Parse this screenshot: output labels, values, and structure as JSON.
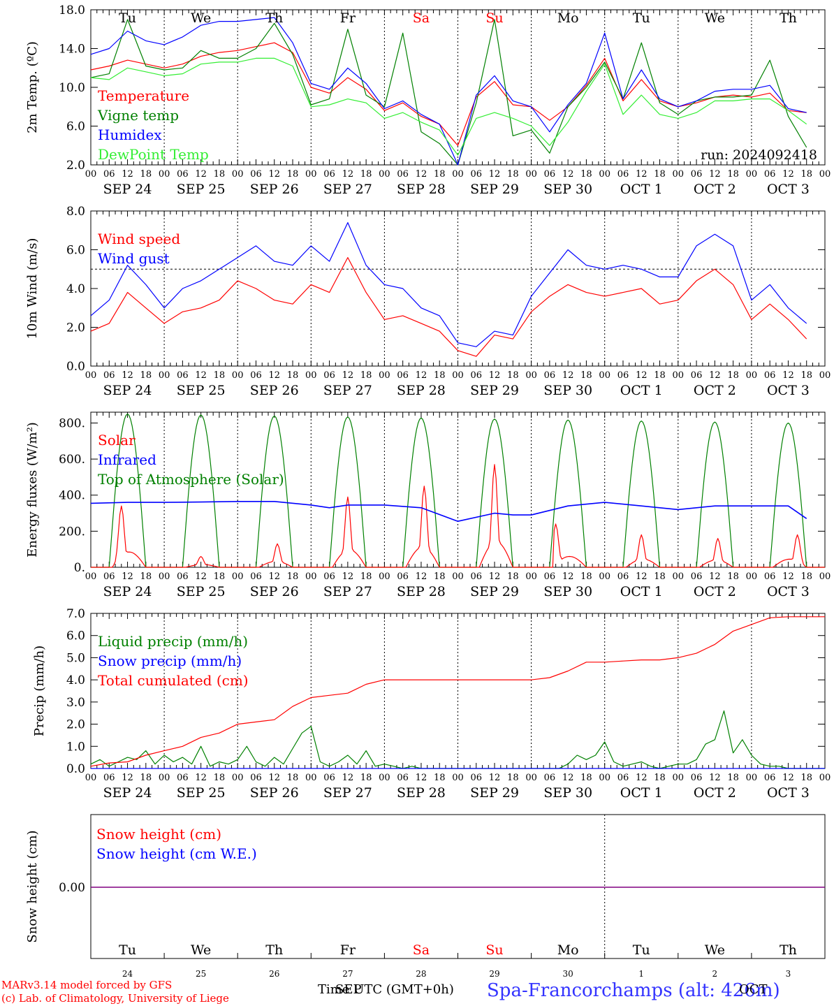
{
  "run_label": "run: 2024092418",
  "footer": {
    "credit_line1": "MARv3.14 model forced by GFS",
    "credit_line2": "(c) Lab. of Climatology, University of Liege",
    "axis_label": "Time UTC (GMT+0h)",
    "station": "Spa-Francorchamps (alt: 426m)",
    "month_marks": [
      "SEP",
      "OCT"
    ]
  },
  "colors": {
    "red": "#ff0000",
    "green": "#008000",
    "blue": "#0000ff",
    "lightgreen": "#33ee33",
    "purple": "#800080",
    "black": "#000000"
  },
  "time_axis": {
    "hour_labels": [
      "00",
      "06",
      "12",
      "18"
    ],
    "day_labels": [
      "SEP 24",
      "SEP 25",
      "SEP 26",
      "SEP 27",
      "SEP 28",
      "SEP 29",
      "SEP 30",
      "OCT  1",
      "OCT  2",
      "OCT  3"
    ],
    "weekdays": [
      "Tu",
      "We",
      "Th",
      "Fr",
      "Sa",
      "Su",
      "Mo",
      "Tu",
      "We",
      "Th"
    ],
    "weekend_days": [
      4,
      5
    ],
    "day_numbers": [
      "24",
      "25",
      "26",
      "27",
      "28",
      "29",
      "30",
      "1",
      "2",
      "3"
    ]
  },
  "chart_data": [
    {
      "type": "line",
      "name": "temperature",
      "ylabel": "2m Temp. (ºC)",
      "ylim": [
        2,
        18
      ],
      "yticks": [
        "2.0",
        "6.0",
        "10.0",
        "14.0",
        "18.0"
      ],
      "ytick_values": [
        2,
        6,
        10,
        14,
        18
      ],
      "x_unit": "hours since 2024-09-24 00 UTC",
      "grid": "vertical dotted at day boundaries",
      "legend_position": "left",
      "series": [
        {
          "name": "Temperature",
          "color": "#ff0000",
          "x": [
            0,
            6,
            12,
            18,
            24,
            30,
            36,
            42,
            48,
            54,
            60,
            66,
            72,
            78,
            84,
            90,
            96,
            102,
            108,
            114,
            120,
            126,
            132,
            138,
            144,
            150,
            156,
            162,
            168,
            174,
            180,
            186,
            192,
            198,
            204,
            210,
            216,
            222,
            228,
            234
          ],
          "y": [
            11.8,
            12.2,
            12.8,
            12.4,
            12.0,
            12.4,
            13.2,
            13.6,
            13.8,
            14.2,
            14.6,
            13.6,
            10.0,
            9.4,
            11.0,
            9.8,
            7.6,
            8.4,
            7.0,
            6.2,
            4.0,
            9.0,
            10.6,
            8.2,
            8.0,
            6.6,
            8.0,
            10.2,
            13.0,
            8.6,
            10.8,
            8.6,
            8.0,
            8.4,
            9.0,
            9.2,
            9.0,
            9.4,
            7.6,
            7.4
          ]
        },
        {
          "name": "Vigne temp",
          "color": "#008000",
          "x": [
            0,
            6,
            12,
            18,
            24,
            30,
            36,
            42,
            48,
            54,
            60,
            66,
            72,
            78,
            84,
            90,
            96,
            102,
            108,
            114,
            120,
            126,
            132,
            138,
            144,
            150,
            156,
            162,
            168,
            174,
            180,
            186,
            192,
            198,
            204,
            210,
            216,
            222,
            228,
            234
          ],
          "y": [
            11.0,
            11.4,
            17.0,
            12.2,
            11.8,
            12.0,
            13.8,
            13.0,
            13.0,
            14.0,
            16.6,
            13.4,
            8.2,
            8.8,
            16.0,
            9.2,
            8.0,
            15.6,
            5.4,
            4.2,
            2.0,
            8.4,
            17.0,
            5.0,
            5.6,
            3.2,
            8.0,
            10.0,
            12.6,
            8.8,
            14.6,
            8.4,
            7.2,
            8.6,
            9.0,
            9.0,
            9.2,
            12.8,
            7.0,
            3.8
          ]
        },
        {
          "name": "Humidex",
          "color": "#0000ff",
          "x": [
            0,
            6,
            12,
            18,
            24,
            30,
            36,
            42,
            48,
            54,
            60,
            66,
            72,
            78,
            84,
            90,
            96,
            102,
            108,
            114,
            120,
            126,
            132,
            138,
            144,
            150,
            156,
            162,
            168,
            174,
            180,
            186,
            192,
            198,
            204,
            210,
            216,
            222,
            228,
            234
          ],
          "y": [
            13.4,
            14.0,
            15.8,
            14.8,
            14.4,
            15.2,
            16.4,
            16.8,
            16.8,
            17.0,
            17.2,
            14.6,
            10.4,
            9.8,
            12.0,
            10.4,
            7.8,
            8.6,
            7.2,
            6.2,
            2.0,
            9.2,
            11.2,
            8.6,
            8.0,
            5.4,
            8.2,
            10.4,
            15.6,
            8.8,
            11.8,
            8.8,
            8.0,
            8.6,
            9.6,
            9.8,
            9.8,
            10.2,
            7.8,
            7.4
          ]
        },
        {
          "name": "DewPoint Temp",
          "color": "#33ee33",
          "x": [
            0,
            6,
            12,
            18,
            24,
            30,
            36,
            42,
            48,
            54,
            60,
            66,
            72,
            78,
            84,
            90,
            96,
            102,
            108,
            114,
            120,
            126,
            132,
            138,
            144,
            150,
            156,
            162,
            168,
            174,
            180,
            186,
            192,
            198,
            204,
            210,
            216,
            222,
            228,
            234
          ],
          "y": [
            11.0,
            10.8,
            12.0,
            11.6,
            11.2,
            11.4,
            12.4,
            12.6,
            12.6,
            13.0,
            13.0,
            12.2,
            8.0,
            8.2,
            8.8,
            8.4,
            6.8,
            7.4,
            6.4,
            5.6,
            3.0,
            6.8,
            7.4,
            6.8,
            6.0,
            4.0,
            6.4,
            9.6,
            12.4,
            7.2,
            9.2,
            7.2,
            6.8,
            7.4,
            8.6,
            8.6,
            8.8,
            8.8,
            7.6,
            6.2
          ]
        }
      ]
    },
    {
      "type": "line",
      "name": "wind",
      "ylabel": "10m Wind (m/s)",
      "ylim": [
        0,
        8
      ],
      "yticks": [
        "0.0",
        "2.0",
        "4.0",
        "6.0",
        "8.0"
      ],
      "ytick_values": [
        0,
        2,
        4,
        6,
        8
      ],
      "reference_line": 5.0,
      "x_unit": "hours since 2024-09-24 00 UTC",
      "legend_position": "top-left",
      "series": [
        {
          "name": "Wind speed",
          "color": "#ff0000",
          "x": [
            0,
            6,
            12,
            18,
            24,
            30,
            36,
            42,
            48,
            54,
            60,
            66,
            72,
            78,
            84,
            90,
            96,
            102,
            108,
            114,
            120,
            126,
            132,
            138,
            144,
            150,
            156,
            162,
            168,
            174,
            180,
            186,
            192,
            198,
            204,
            210,
            216,
            222,
            228,
            234
          ],
          "y": [
            1.8,
            2.2,
            3.8,
            3.0,
            2.2,
            2.8,
            3.0,
            3.4,
            4.4,
            4.0,
            3.4,
            3.2,
            4.2,
            3.8,
            5.6,
            3.8,
            2.4,
            2.6,
            2.2,
            1.8,
            0.8,
            0.5,
            1.6,
            1.4,
            2.8,
            3.6,
            4.2,
            3.8,
            3.6,
            3.8,
            4.0,
            3.2,
            3.4,
            4.4,
            5.0,
            4.2,
            2.4,
            3.2,
            2.4,
            1.4
          ]
        },
        {
          "name": "Wind gust",
          "color": "#0000ff",
          "x": [
            0,
            6,
            12,
            18,
            24,
            30,
            36,
            42,
            48,
            54,
            60,
            66,
            72,
            78,
            84,
            90,
            96,
            102,
            108,
            114,
            120,
            126,
            132,
            138,
            144,
            150,
            156,
            162,
            168,
            174,
            180,
            186,
            192,
            198,
            204,
            210,
            216,
            222,
            228,
            234
          ],
          "y": [
            2.6,
            3.4,
            5.2,
            4.2,
            3.0,
            4.0,
            4.4,
            5.0,
            5.6,
            6.2,
            5.4,
            5.2,
            6.2,
            5.4,
            7.4,
            5.2,
            4.2,
            4.0,
            3.0,
            2.6,
            1.2,
            1.0,
            1.8,
            1.6,
            3.6,
            4.8,
            6.0,
            5.2,
            5.0,
            5.2,
            5.0,
            4.6,
            4.6,
            6.2,
            6.8,
            6.2,
            3.4,
            4.2,
            3.0,
            2.2
          ]
        }
      ]
    },
    {
      "type": "line",
      "name": "energy",
      "ylabel": "Energy fluxes (W/m²)",
      "ylim": [
        0,
        860
      ],
      "yticks": [
        "0.",
        "200.",
        "400.",
        "600.",
        "800."
      ],
      "ytick_values": [
        0,
        200,
        400,
        600,
        800
      ],
      "x_unit": "hours since 2024-09-24 00 UTC",
      "legend_position": "top-left",
      "series": [
        {
          "name": "Solar",
          "color": "#ff0000",
          "daily_peak_hours": [
            10,
            12,
            13,
            12,
            13,
            12,
            8,
            12,
            13,
            15
          ],
          "daily_peaks": [
            340,
            60,
            130,
            390,
            450,
            570,
            240,
            180,
            160,
            180
          ]
        },
        {
          "name": "Infrared",
          "color": "#0000ff",
          "x": [
            0,
            12,
            24,
            36,
            48,
            60,
            72,
            78,
            84,
            96,
            108,
            120,
            132,
            138,
            144,
            156,
            168,
            180,
            192,
            204,
            216,
            228,
            234
          ],
          "y": [
            355,
            360,
            360,
            362,
            365,
            365,
            345,
            330,
            345,
            345,
            330,
            255,
            300,
            290,
            290,
            340,
            360,
            340,
            320,
            340,
            340,
            340,
            270
          ]
        },
        {
          "name": "Top of Atmosphere (Solar)",
          "color": "#008000",
          "peak": 850,
          "peak_end": 800,
          "hours": [
            6,
            18
          ]
        }
      ]
    },
    {
      "type": "line",
      "name": "precip",
      "ylabel": "Precip (mm/h)",
      "ylim": [
        0,
        7
      ],
      "yticks": [
        "0.0",
        "1.0",
        "2.0",
        "3.0",
        "4.0",
        "5.0",
        "6.0",
        "7.0"
      ],
      "ytick_values": [
        0,
        1,
        2,
        3,
        4,
        5,
        6,
        7
      ],
      "x_unit": "hours since 2024-09-24 00 UTC",
      "legend_position": "top-left",
      "series": [
        {
          "name": "Liquid precip (mm/h)",
          "color": "#008000",
          "x": [
            0,
            3,
            6,
            9,
            12,
            15,
            18,
            21,
            24,
            27,
            30,
            33,
            36,
            39,
            42,
            45,
            48,
            51,
            54,
            57,
            60,
            63,
            66,
            69,
            72,
            75,
            78,
            81,
            84,
            87,
            90,
            93,
            96,
            99,
            102,
            105,
            108,
            111,
            114,
            117,
            120,
            123,
            126,
            129,
            132,
            135,
            138,
            141,
            144,
            147,
            150,
            153,
            156,
            159,
            162,
            165,
            168,
            171,
            174,
            177,
            180,
            183,
            186,
            189,
            192,
            195,
            198,
            201,
            204,
            207,
            210,
            213,
            216,
            219,
            222,
            225,
            228,
            231,
            234,
            237,
            240
          ],
          "y": [
            0.2,
            0.4,
            0.1,
            0.3,
            0.5,
            0.4,
            0.8,
            0.2,
            0.6,
            0.3,
            0.5,
            0.2,
            1.0,
            0.1,
            0.3,
            0.2,
            0.4,
            1.0,
            0.3,
            0.1,
            0.5,
            0.2,
            0.9,
            1.6,
            1.9,
            0.3,
            0.1,
            0.3,
            0.6,
            0.2,
            0.8,
            0.1,
            0.2,
            0.1,
            0.0,
            0.1,
            0.0,
            0.0,
            0.0,
            0.0,
            0.0,
            0.0,
            0.0,
            0.0,
            0.0,
            0.0,
            0.0,
            0.0,
            0.0,
            0.0,
            0.0,
            0.0,
            0.2,
            0.6,
            0.4,
            0.6,
            1.2,
            0.3,
            0.1,
            0.2,
            0.3,
            0.1,
            0.0,
            0.1,
            0.2,
            0.2,
            0.4,
            1.1,
            1.3,
            2.6,
            0.7,
            1.3,
            0.6,
            0.2,
            0.1,
            0.1,
            0.0,
            0.0,
            0.0,
            0.0,
            0.0
          ]
        },
        {
          "name": "Snow precip (mm/h)",
          "color": "#0000ff",
          "x": [
            0,
            240
          ],
          "y": [
            0,
            0
          ]
        },
        {
          "name": "Total cumulated (cm)",
          "color": "#ff0000",
          "x": [
            0,
            6,
            12,
            18,
            24,
            30,
            36,
            42,
            48,
            54,
            60,
            66,
            72,
            78,
            84,
            90,
            96,
            102,
            108,
            114,
            120,
            126,
            132,
            138,
            144,
            150,
            156,
            162,
            168,
            174,
            180,
            186,
            192,
            198,
            204,
            210,
            216,
            222,
            228,
            234,
            240
          ],
          "y": [
            0.1,
            0.25,
            0.3,
            0.6,
            0.8,
            1.0,
            1.4,
            1.6,
            2.0,
            2.1,
            2.2,
            2.8,
            3.2,
            3.3,
            3.4,
            3.8,
            4.0,
            4.0,
            4.0,
            4.0,
            4.0,
            4.0,
            4.0,
            4.0,
            4.0,
            4.1,
            4.4,
            4.8,
            4.8,
            4.85,
            4.9,
            4.9,
            5.0,
            5.2,
            5.6,
            6.2,
            6.5,
            6.8,
            6.85,
            6.85,
            6.85
          ]
        }
      ]
    },
    {
      "type": "line",
      "name": "snow",
      "ylabel": "Snow height (cm)",
      "yticks": [
        "0.00"
      ],
      "x_unit": "hours since 2024-09-24 00 UTC",
      "legend_position": "top-left",
      "series": [
        {
          "name": "Snow height (cm)",
          "color": "#ff0000",
          "x": [
            0,
            240
          ],
          "y": [
            0,
            0
          ]
        },
        {
          "name": "Snow height (cm W.E.)",
          "color": "#0000ff",
          "x": [
            0,
            240
          ],
          "y": [
            0,
            0
          ]
        }
      ]
    }
  ]
}
